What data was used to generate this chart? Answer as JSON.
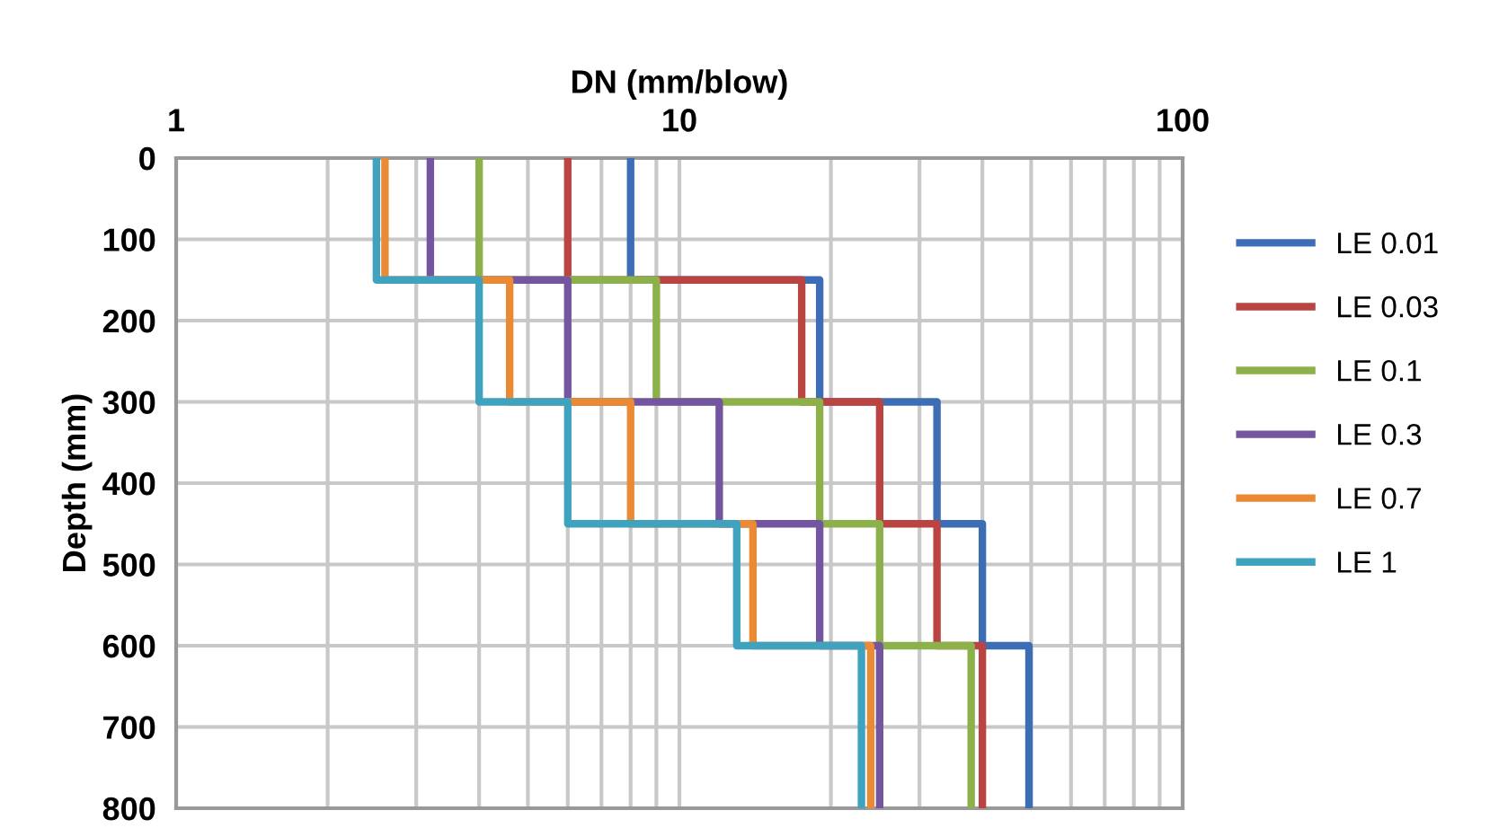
{
  "chart_data": {
    "type": "line",
    "xlabel": "DN (mm/blow)",
    "ylabel": "Depth (mm)",
    "log": "x",
    "xlim": [
      1,
      100
    ],
    "xticks": [
      1,
      {
        "value": 2,
        "label": null
      },
      {
        "value": 3,
        "label": null
      },
      {
        "value": 4,
        "label": null
      },
      {
        "value": 5,
        "label": null
      },
      {
        "value": 6,
        "label": null
      },
      {
        "value": 7,
        "label": null
      },
      {
        "value": 8,
        "label": null
      },
      {
        "value": 9,
        "label": null
      },
      10,
      {
        "value": 20,
        "label": null
      },
      {
        "value": 30,
        "label": null
      },
      {
        "value": 40,
        "label": null
      },
      {
        "value": 50,
        "label": null
      },
      {
        "value": 60,
        "label": null
      },
      {
        "value": 70,
        "label": null
      },
      {
        "value": 80,
        "label": null
      },
      {
        "value": 90,
        "label": null
      },
      100
    ],
    "ylim": [
      800,
      0
    ],
    "yticks": [
      0,
      100,
      200,
      300,
      400,
      500,
      600,
      700,
      800
    ],
    "grid": true,
    "legend": "right",
    "marker": "none",
    "line_style": "solid",
    "series": [
      {
        "name": "LE 0.01",
        "color": "#3d6db5",
        "x": [
          8,
          8,
          19,
          19,
          32.5,
          32.5,
          40,
          40,
          49.5,
          49.5
        ],
        "values": [
          0,
          150,
          150,
          300,
          300,
          450,
          450,
          600,
          600,
          800
        ]
      },
      {
        "name": "LE 0.03",
        "color": "#b94441",
        "x": [
          6,
          6,
          17.5,
          17.5,
          25,
          25,
          32.5,
          32.5,
          40,
          40
        ],
        "values": [
          0,
          150,
          150,
          300,
          300,
          450,
          450,
          600,
          600,
          800
        ]
      },
      {
        "name": "LE 0.1",
        "color": "#8cb04a",
        "x": [
          4,
          4,
          9,
          9,
          19,
          19,
          25,
          25,
          38,
          38
        ],
        "values": [
          0,
          150,
          150,
          300,
          300,
          450,
          450,
          600,
          600,
          800
        ]
      },
      {
        "name": "LE 0.3",
        "color": "#7355a0",
        "x": [
          3.2,
          3.2,
          6,
          6,
          12,
          12,
          19,
          19,
          25,
          25
        ],
        "values": [
          0,
          150,
          150,
          300,
          300,
          450,
          450,
          600,
          600,
          800
        ]
      },
      {
        "name": "LE 0.7",
        "color": "#ea8a34",
        "x": [
          2.6,
          2.6,
          4.6,
          4.6,
          8,
          8,
          14,
          14,
          24,
          24
        ],
        "values": [
          0,
          150,
          150,
          300,
          300,
          450,
          450,
          600,
          600,
          800
        ]
      },
      {
        "name": "LE 1",
        "color": "#3fa3bf",
        "x": [
          2.5,
          2.5,
          4,
          4,
          6,
          6,
          13,
          13,
          23,
          23
        ],
        "values": [
          0,
          150,
          150,
          300,
          300,
          450,
          450,
          600,
          600,
          800
        ]
      }
    ]
  }
}
